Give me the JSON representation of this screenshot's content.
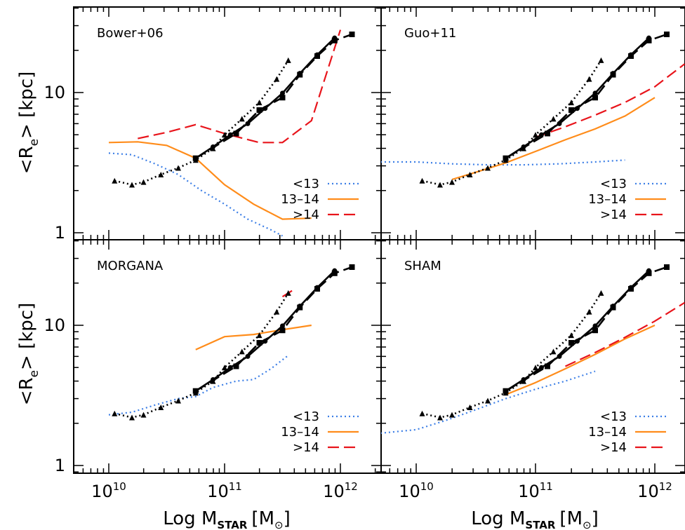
{
  "figure": {
    "ylabel": "<R",
    "ylabel_sub": "e",
    "ylabel_tail": "> [kpc]",
    "xlabel_prefix": "Log M",
    "xlabel_sub": "STAR",
    "xlabel_unit": "[M",
    "xlabel_unit_sub": "⊙",
    "xlabel_tail": "]",
    "ytick_labels": [
      "1",
      "10"
    ],
    "xtick_base": "10",
    "xtick_exps": [
      "10",
      "11",
      "12"
    ],
    "xtick_values": [
      10,
      11,
      12
    ]
  },
  "legend": {
    "entries": [
      {
        "label": "<13",
        "color": "#3d7fe6",
        "style": "dotted"
      },
      {
        "label": "13–14",
        "color": "#ff8c1a",
        "style": "solid"
      },
      {
        "label": ">14",
        "color": "#e8141b",
        "style": "dashed"
      }
    ]
  },
  "chart_data": [
    {
      "type": "line",
      "title": "Bower+06",
      "xscale": "log",
      "yscale": "log",
      "xlim": [
        9.7,
        12.1
      ],
      "ylim": [
        0.85,
        30
      ],
      "series": [
        {
          "name": "<13",
          "color": "#3d7fe6",
          "style": "dotted",
          "x": [
            10.0,
            10.2,
            10.4,
            10.6,
            10.8,
            11.0,
            11.2,
            11.4,
            11.5
          ],
          "y": [
            3.7,
            3.6,
            3.1,
            2.6,
            2.0,
            1.6,
            1.25,
            1.05,
            0.95
          ]
        },
        {
          "name": "13–14",
          "color": "#ff8c1a",
          "style": "solid",
          "x": [
            10.0,
            10.25,
            10.5,
            10.75,
            11.0,
            11.25,
            11.5,
            11.75
          ],
          "y": [
            4.4,
            4.45,
            4.2,
            3.4,
            2.2,
            1.6,
            1.25,
            1.27
          ]
        },
        {
          "name": ">14",
          "color": "#e8141b",
          "style": "dashed",
          "x": [
            10.25,
            10.5,
            10.75,
            11.0,
            11.3,
            11.5,
            11.75,
            12.0
          ],
          "y": [
            4.7,
            5.2,
            5.9,
            5.1,
            4.4,
            4.4,
            6.3,
            28
          ]
        },
        {
          "name": "",
          "color": "#000000",
          "style": "dotted-markers",
          "x": [
            10.05,
            10.2,
            10.3,
            10.45,
            10.6,
            10.75,
            10.9,
            11.0,
            11.15,
            11.3,
            11.45,
            11.55
          ],
          "y": [
            2.35,
            2.2,
            2.3,
            2.6,
            2.9,
            3.3,
            4.0,
            5.0,
            6.5,
            8.5,
            12.5,
            17.0
          ]
        },
        {
          "name": "",
          "color": "#000000",
          "style": "solid-markers",
          "x": [
            10.75,
            10.9,
            11.05,
            11.2,
            11.35,
            11.5,
            11.65,
            11.8,
            11.95
          ],
          "y": [
            3.4,
            4.1,
            5.0,
            6.0,
            7.7,
            9.9,
            13.7,
            18.6,
            24.5
          ]
        },
        {
          "name": "",
          "color": "#000000",
          "style": "dashed-squares",
          "x": [
            10.75,
            11.1,
            11.3,
            11.5,
            11.65,
            11.8,
            11.95,
            12.1
          ],
          "y": [
            3.4,
            5.1,
            7.5,
            9.2,
            13.4,
            18.2,
            23.5,
            26.0
          ]
        }
      ]
    },
    {
      "type": "line",
      "title": "Guo+11",
      "xscale": "log",
      "yscale": "log",
      "xlim": [
        9.7,
        12.1
      ],
      "ylim": [
        0.85,
        30
      ],
      "series": [
        {
          "name": "<13",
          "color": "#3d7fe6",
          "style": "dotted",
          "x": [
            9.7,
            10.0,
            10.3,
            10.6,
            10.9,
            11.2,
            11.5,
            11.75
          ],
          "y": [
            3.2,
            3.2,
            3.1,
            3.05,
            3.05,
            3.1,
            3.2,
            3.3
          ]
        },
        {
          "name": "13–14",
          "color": "#ff8c1a",
          "style": "solid",
          "x": [
            10.3,
            10.5,
            10.75,
            11.0,
            11.25,
            11.5,
            11.75,
            12.0
          ],
          "y": [
            2.4,
            2.7,
            3.15,
            3.8,
            4.6,
            5.5,
            6.8,
            9.2
          ]
        },
        {
          "name": ">14",
          "color": "#e8141b",
          "style": "dashed",
          "x": [
            11.0,
            11.25,
            11.5,
            11.75,
            12.0,
            12.25
          ],
          "y": [
            4.8,
            5.7,
            6.9,
            8.5,
            11.0,
            16.0
          ]
        },
        {
          "name": "",
          "color": "#000000",
          "style": "dotted-markers",
          "x": [
            10.05,
            10.2,
            10.3,
            10.45,
            10.6,
            10.75,
            10.9,
            11.0,
            11.15,
            11.3,
            11.45,
            11.55
          ],
          "y": [
            2.35,
            2.2,
            2.3,
            2.6,
            2.9,
            3.3,
            4.0,
            5.0,
            6.5,
            8.5,
            12.5,
            17.0
          ]
        },
        {
          "name": "",
          "color": "#000000",
          "style": "solid-markers",
          "x": [
            10.75,
            10.9,
            11.05,
            11.2,
            11.35,
            11.5,
            11.65,
            11.8,
            11.95
          ],
          "y": [
            3.4,
            4.1,
            5.0,
            6.0,
            7.7,
            9.9,
            13.7,
            18.6,
            24.5
          ]
        },
        {
          "name": "",
          "color": "#000000",
          "style": "dashed-squares",
          "x": [
            10.75,
            11.1,
            11.3,
            11.5,
            11.65,
            11.8,
            11.95,
            12.1
          ],
          "y": [
            3.4,
            5.1,
            7.5,
            9.2,
            13.4,
            18.2,
            23.5,
            26.0
          ]
        }
      ]
    },
    {
      "type": "line",
      "title": "MORGANA",
      "xscale": "log",
      "yscale": "log",
      "xlim": [
        9.7,
        12.1
      ],
      "ylim": [
        0.85,
        30
      ],
      "series": [
        {
          "name": "<13",
          "color": "#3d7fe6",
          "style": "dotted",
          "x": [
            10.0,
            10.2,
            10.4,
            10.6,
            10.75,
            10.9,
            11.1,
            11.25,
            11.4,
            11.55
          ],
          "y": [
            2.3,
            2.4,
            2.7,
            3.0,
            3.1,
            3.6,
            4.0,
            4.1,
            4.9,
            6.1
          ]
        },
        {
          "name": "13–14",
          "color": "#ff8c1a",
          "style": "solid",
          "x": [
            10.75,
            11.0,
            11.25,
            11.5,
            11.75
          ],
          "y": [
            6.7,
            8.3,
            8.6,
            9.3,
            10.0
          ]
        },
        {
          "name": ">14",
          "color": "#e8141b",
          "style": "dashed",
          "x": [
            11.5,
            11.6
          ],
          "y": [
            16.0,
            18.0
          ]
        },
        {
          "name": "",
          "color": "#000000",
          "style": "dotted-markers",
          "x": [
            10.05,
            10.2,
            10.3,
            10.45,
            10.6,
            10.75,
            10.9,
            11.0,
            11.15,
            11.3,
            11.45,
            11.55
          ],
          "y": [
            2.35,
            2.2,
            2.3,
            2.6,
            2.9,
            3.3,
            4.0,
            5.0,
            6.5,
            8.5,
            12.5,
            17.0
          ]
        },
        {
          "name": "",
          "color": "#000000",
          "style": "solid-markers",
          "x": [
            10.75,
            10.9,
            11.05,
            11.2,
            11.35,
            11.5,
            11.65,
            11.8,
            11.95
          ],
          "y": [
            3.4,
            4.1,
            5.0,
            6.0,
            7.7,
            9.9,
            13.7,
            18.6,
            24.5
          ]
        },
        {
          "name": "",
          "color": "#000000",
          "style": "dashed-squares",
          "x": [
            10.75,
            11.1,
            11.3,
            11.5,
            11.65,
            11.8,
            11.95,
            12.1
          ],
          "y": [
            3.4,
            5.1,
            7.5,
            9.2,
            13.4,
            18.2,
            23.5,
            26.0
          ]
        }
      ]
    },
    {
      "type": "line",
      "title": "SHAM",
      "xscale": "log",
      "yscale": "log",
      "xlim": [
        9.7,
        12.1
      ],
      "ylim": [
        0.85,
        30
      ],
      "series": [
        {
          "name": "<13",
          "color": "#3d7fe6",
          "style": "dotted",
          "x": [
            9.7,
            10.0,
            10.25,
            10.5,
            10.75,
            11.0,
            11.25,
            11.5
          ],
          "y": [
            1.7,
            1.8,
            2.1,
            2.5,
            3.0,
            3.5,
            4.0,
            4.7
          ]
        },
        {
          "name": "13–14",
          "color": "#ff8c1a",
          "style": "solid",
          "x": [
            10.75,
            11.0,
            11.25,
            11.5,
            11.75,
            12.0
          ],
          "y": [
            3.2,
            3.9,
            4.9,
            6.2,
            8.0,
            10.0
          ]
        },
        {
          "name": ">14",
          "color": "#e8141b",
          "style": "dashed",
          "x": [
            11.25,
            11.5,
            11.75,
            12.0,
            12.25
          ],
          "y": [
            5.1,
            6.4,
            8.2,
            10.7,
            14.5
          ]
        },
        {
          "name": "",
          "color": "#000000",
          "style": "dotted-markers",
          "x": [
            10.05,
            10.2,
            10.3,
            10.45,
            10.6,
            10.75,
            10.9,
            11.0,
            11.15,
            11.3,
            11.45,
            11.55
          ],
          "y": [
            2.35,
            2.2,
            2.3,
            2.6,
            2.9,
            3.3,
            4.0,
            5.0,
            6.5,
            8.5,
            12.5,
            17.0
          ]
        },
        {
          "name": "",
          "color": "#000000",
          "style": "solid-markers",
          "x": [
            10.75,
            10.9,
            11.05,
            11.2,
            11.35,
            11.5,
            11.65,
            11.8,
            11.95
          ],
          "y": [
            3.4,
            4.1,
            5.0,
            6.0,
            7.7,
            9.9,
            13.7,
            18.6,
            24.5
          ]
        },
        {
          "name": "",
          "color": "#000000",
          "style": "dashed-squares",
          "x": [
            10.75,
            11.1,
            11.3,
            11.5,
            11.65,
            11.8,
            11.95,
            12.1
          ],
          "y": [
            3.4,
            5.1,
            7.5,
            9.2,
            13.4,
            18.2,
            23.5,
            26.0
          ]
        }
      ]
    }
  ]
}
